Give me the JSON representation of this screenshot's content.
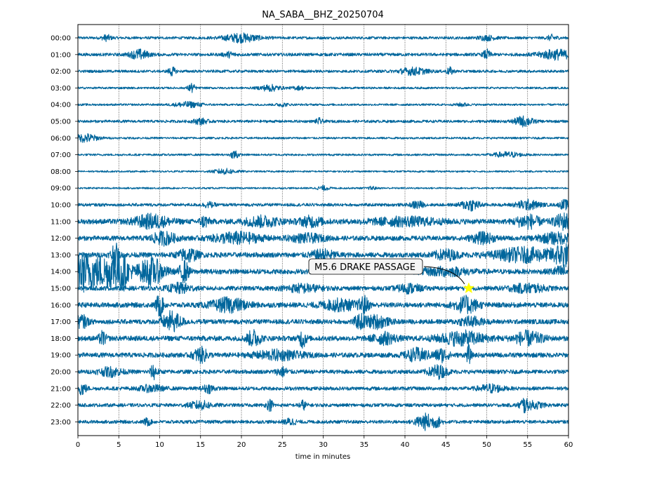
{
  "chart_data": {
    "type": "line",
    "title": "NA_SABA__BHZ_20250704",
    "xlabel": "time in minutes",
    "ylabel": "",
    "xlim": [
      0,
      60
    ],
    "xticks": [
      0,
      5,
      10,
      15,
      20,
      25,
      30,
      35,
      40,
      45,
      50,
      55,
      60
    ],
    "grid": "vertical dotted lines at x ticks",
    "trace_color": "#00669c",
    "rows": [
      {
        "label": "00:00",
        "amp": 0.16,
        "bursts": [
          [
            3.5,
            0.4,
            2.0
          ],
          [
            20.0,
            1.5,
            3.0
          ],
          [
            50.0,
            0.8,
            1.5
          ],
          [
            58.0,
            0.4,
            2.0
          ]
        ]
      },
      {
        "label": "01:00",
        "amp": 0.18,
        "bursts": [
          [
            7.5,
            0.8,
            3.0
          ],
          [
            18.5,
            0.5,
            1.5
          ],
          [
            50.0,
            0.3,
            3.0
          ],
          [
            58.5,
            1.5,
            3.0
          ]
        ]
      },
      {
        "label": "02:00",
        "amp": 0.16,
        "bursts": [
          [
            11.5,
            0.3,
            3.0
          ],
          [
            41.0,
            1.2,
            2.5
          ],
          [
            45.5,
            0.3,
            2.5
          ]
        ]
      },
      {
        "label": "03:00",
        "amp": 0.12,
        "bursts": [
          [
            13.9,
            0.3,
            4.5
          ],
          [
            23.5,
            0.9,
            3.0
          ],
          [
            27.0,
            0.6,
            1.5
          ]
        ]
      },
      {
        "label": "04:00",
        "amp": 0.12,
        "bursts": [
          [
            13.5,
            1.2,
            2.5
          ],
          [
            25.0,
            0.5,
            1.5
          ],
          [
            47.0,
            0.5,
            1.5
          ]
        ]
      },
      {
        "label": "05:00",
        "amp": 0.16,
        "bursts": [
          [
            15.0,
            0.6,
            2.0
          ],
          [
            29.5,
            0.3,
            2.0
          ],
          [
            54.5,
            0.8,
            3.5
          ]
        ]
      },
      {
        "label": "06:00",
        "amp": 0.12,
        "bursts": [
          [
            1.0,
            1.0,
            4.0
          ]
        ]
      },
      {
        "label": "07:00",
        "amp": 0.12,
        "bursts": [
          [
            19.2,
            0.3,
            5.0
          ],
          [
            52.5,
            1.2,
            2.5
          ]
        ]
      },
      {
        "label": "08:00",
        "amp": 0.1,
        "bursts": [
          [
            18.0,
            1.0,
            3.0
          ]
        ]
      },
      {
        "label": "09:00",
        "amp": 0.1,
        "bursts": [
          [
            30.0,
            0.5,
            2.5
          ],
          [
            36.0,
            0.3,
            2.0
          ]
        ]
      },
      {
        "label": "10:00",
        "amp": 0.18,
        "bursts": [
          [
            16.0,
            0.5,
            1.5
          ],
          [
            41.5,
            0.5,
            2.5
          ],
          [
            48.0,
            0.8,
            3.5
          ],
          [
            55.0,
            1.0,
            3.0
          ],
          [
            59.5,
            0.4,
            3.0
          ]
        ]
      },
      {
        "label": "11:00",
        "amp": 0.3,
        "bursts": [
          [
            9.0,
            1.5,
            2.5
          ],
          [
            15.5,
            0.4,
            2.0
          ],
          [
            22.5,
            1.5,
            1.8
          ],
          [
            28.5,
            1.0,
            1.8
          ],
          [
            40.0,
            3.0,
            1.4
          ],
          [
            55.0,
            1.0,
            2.5
          ],
          [
            59.5,
            0.8,
            3.0
          ]
        ]
      },
      {
        "label": "12:00",
        "amp": 0.28,
        "bursts": [
          [
            10.5,
            1.0,
            2.5
          ],
          [
            19.5,
            2.0,
            2.2
          ],
          [
            28.0,
            1.5,
            1.5
          ],
          [
            49.5,
            1.0,
            2.0
          ],
          [
            58.5,
            1.5,
            2.0
          ]
        ]
      },
      {
        "label": "13:00",
        "amp": 0.3,
        "bursts": [
          [
            4.5,
            0.3,
            5.0
          ],
          [
            13.5,
            0.8,
            2.5
          ],
          [
            30.0,
            1.0,
            1.8
          ],
          [
            45.0,
            1.0,
            1.8
          ],
          [
            54.5,
            2.5,
            2.5
          ],
          [
            59.5,
            1.0,
            4.0
          ]
        ]
      },
      {
        "label": "14:00",
        "amp": 0.3,
        "bursts": [
          [
            0.6,
            0.9,
            6.0
          ],
          [
            3.6,
            1.8,
            6.0
          ],
          [
            5.4,
            0.4,
            4.5
          ],
          [
            9.0,
            1.1,
            5.0
          ],
          [
            13.0,
            0.4,
            4.0
          ],
          [
            45.0,
            2.0,
            1.4
          ],
          [
            59.5,
            1.0,
            2.0
          ]
        ]
      },
      {
        "label": "15:00",
        "amp": 0.26,
        "bursts": [
          [
            12.5,
            1.0,
            2.0
          ],
          [
            27.5,
            1.5,
            1.6
          ],
          [
            40.5,
            1.0,
            1.8
          ],
          [
            55.0,
            1.5,
            1.8
          ]
        ]
      },
      {
        "label": "16:00",
        "amp": 0.3,
        "bursts": [
          [
            10.0,
            0.3,
            4.5
          ],
          [
            18.5,
            1.5,
            2.5
          ],
          [
            32.0,
            1.5,
            2.0
          ],
          [
            35.0,
            0.4,
            3.0
          ],
          [
            47.5,
            1.0,
            3.0
          ]
        ]
      },
      {
        "label": "17:00",
        "amp": 0.28,
        "bursts": [
          [
            0.5,
            0.5,
            2.5
          ],
          [
            11.5,
            0.8,
            4.0
          ],
          [
            34.5,
            0.5,
            2.5
          ],
          [
            36.5,
            1.0,
            2.5
          ],
          [
            48.0,
            1.0,
            1.8
          ]
        ]
      },
      {
        "label": "18:00",
        "amp": 0.3,
        "bursts": [
          [
            3.0,
            0.3,
            2.5
          ],
          [
            21.5,
            0.6,
            3.0
          ],
          [
            27.5,
            0.3,
            3.5
          ],
          [
            37.5,
            1.0,
            2.0
          ],
          [
            47.0,
            2.0,
            2.5
          ],
          [
            55.0,
            1.2,
            2.5
          ]
        ]
      },
      {
        "label": "19:00",
        "amp": 0.28,
        "bursts": [
          [
            15.0,
            0.6,
            3.0
          ],
          [
            24.5,
            2.0,
            1.8
          ],
          [
            41.5,
            1.0,
            2.5
          ],
          [
            44.5,
            0.6,
            2.5
          ],
          [
            47.8,
            0.2,
            3.5
          ]
        ]
      },
      {
        "label": "20:00",
        "amp": 0.24,
        "bursts": [
          [
            4.0,
            1.0,
            2.0
          ],
          [
            9.3,
            0.3,
            3.5
          ],
          [
            25.0,
            0.5,
            2.0
          ],
          [
            44.0,
            0.8,
            3.0
          ]
        ]
      },
      {
        "label": "21:00",
        "amp": 0.22,
        "bursts": [
          [
            0.5,
            0.4,
            3.0
          ],
          [
            9.0,
            1.0,
            1.6
          ],
          [
            16.0,
            0.5,
            2.0
          ],
          [
            50.5,
            1.0,
            2.0
          ]
        ]
      },
      {
        "label": "22:00",
        "amp": 0.2,
        "bursts": [
          [
            15.0,
            1.0,
            2.2
          ],
          [
            23.5,
            0.3,
            3.0
          ],
          [
            27.5,
            0.3,
            2.5
          ],
          [
            54.5,
            0.3,
            3.5
          ],
          [
            55.5,
            1.0,
            2.0
          ]
        ]
      },
      {
        "label": "23:00",
        "amp": 0.2,
        "bursts": [
          [
            8.5,
            0.3,
            2.0
          ],
          [
            26.0,
            0.5,
            1.8
          ],
          [
            42.5,
            0.8,
            4.5
          ],
          [
            44.0,
            0.4,
            2.0
          ]
        ]
      }
    ],
    "annotations": [
      {
        "text": "M5.6 DRAKE PASSAGE",
        "hour": "15:00",
        "minute": 47.8,
        "marker": "star",
        "marker_color": "#ffff00"
      }
    ]
  }
}
